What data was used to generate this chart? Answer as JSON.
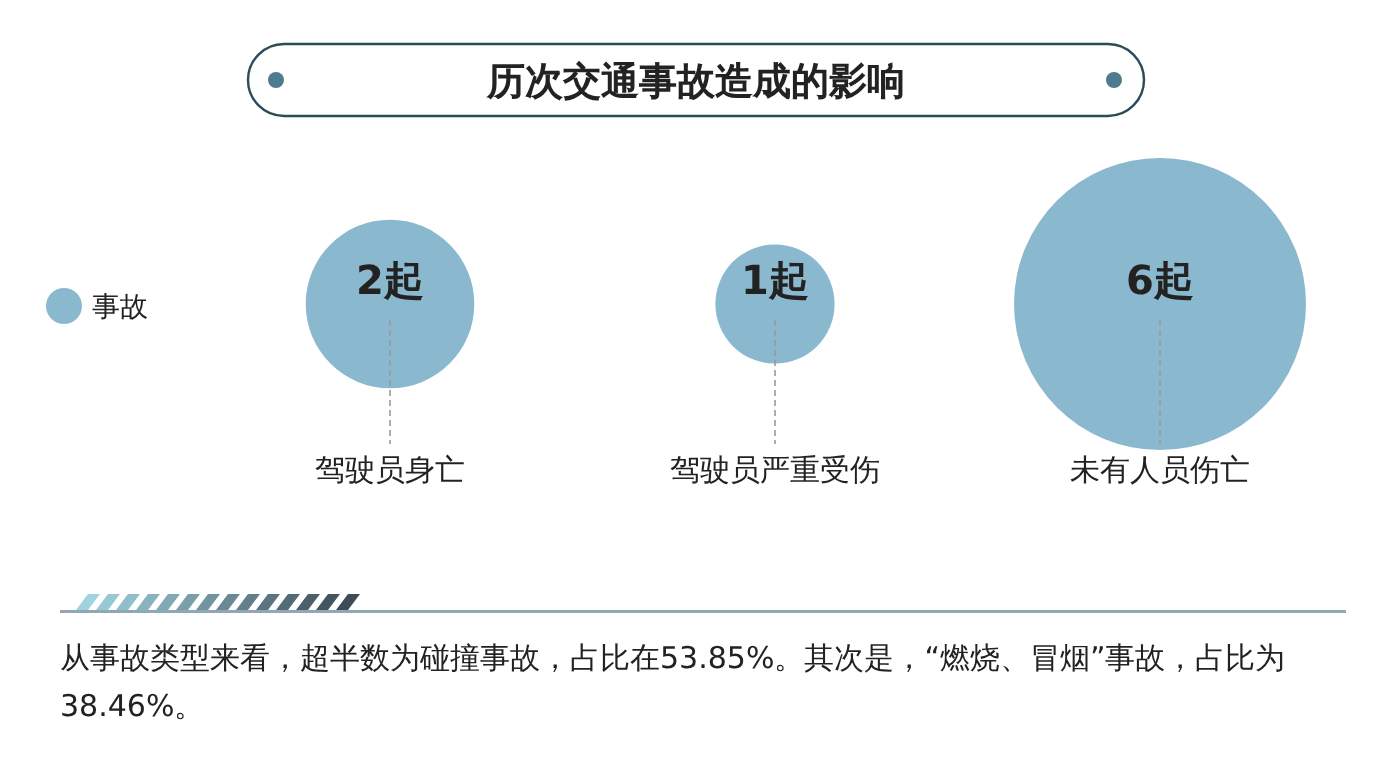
{
  "chart_data": {
    "type": "other",
    "title": "历次交通事故造成的影响",
    "categories": [
      "驾驶员身亡",
      "驾驶员严重受伤",
      "未有人员伤亡"
    ],
    "series": [
      {
        "name": "事故",
        "color": "#8ab9cf",
        "values": [
          2,
          1,
          6
        ],
        "value_labels": [
          "2起",
          "1起",
          "6起"
        ]
      }
    ],
    "legend": "left",
    "annotations": [
      "从事故类型来看，超半数为碰撞事故，占比在53.85%。其次是，“燃烧、冒烟”事故，占比为38.46%。"
    ]
  }
}
